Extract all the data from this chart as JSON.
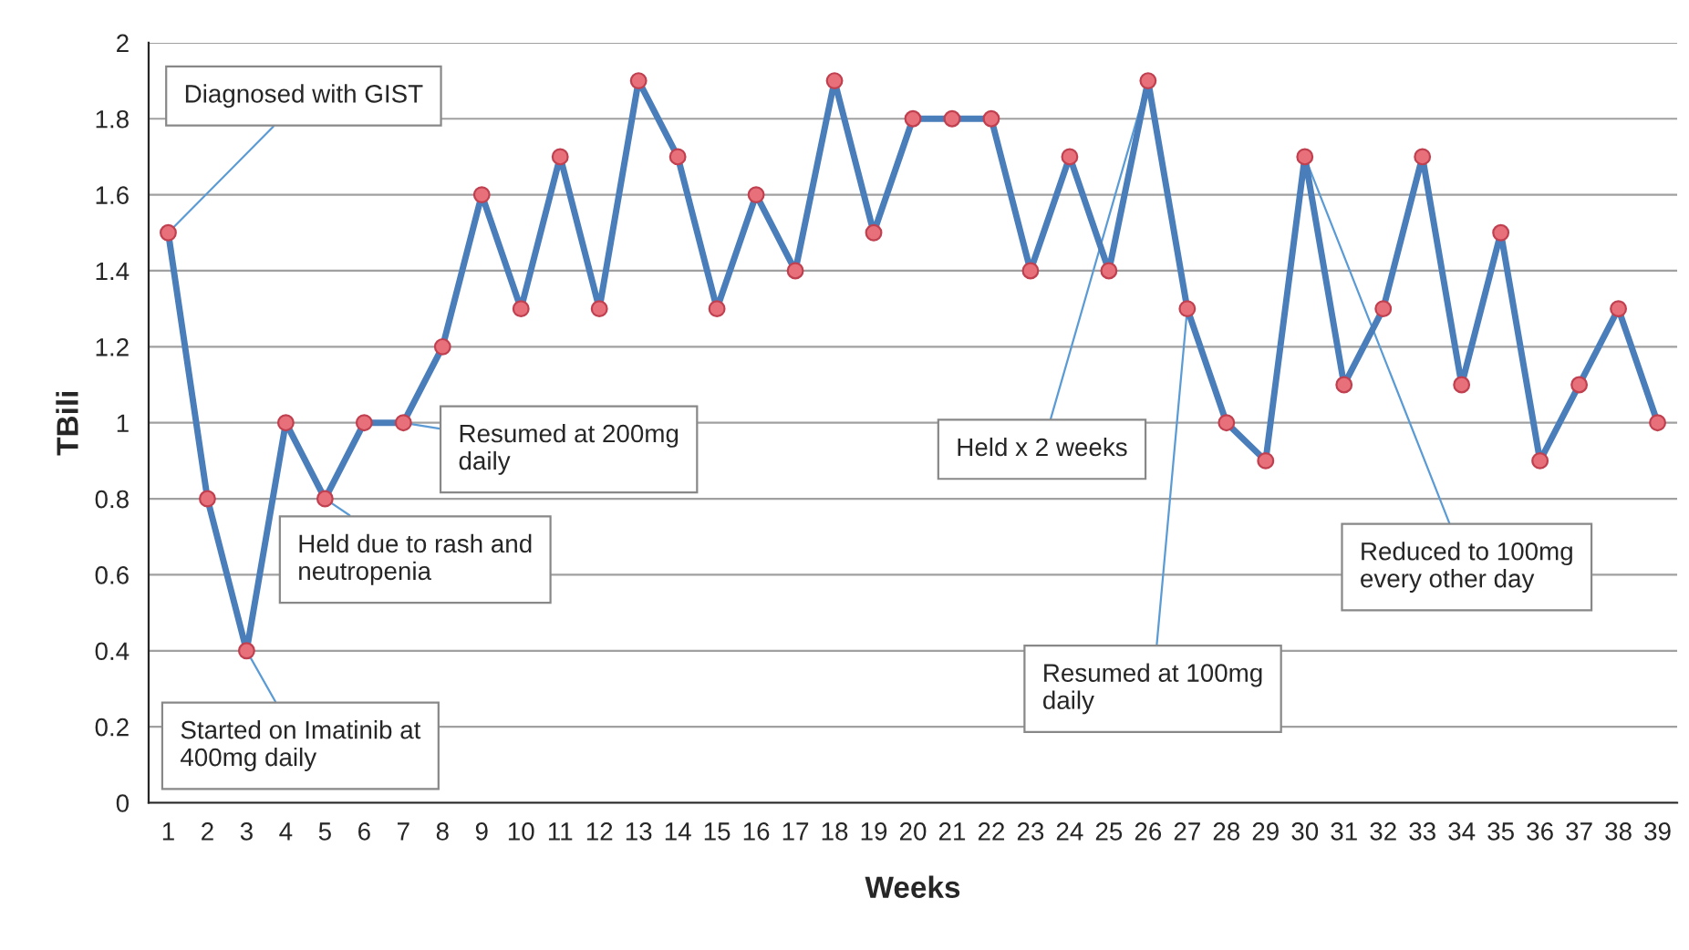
{
  "chart_data": {
    "type": "line",
    "xlabel": "Weeks",
    "ylabel": "TBili",
    "categories": [
      "1",
      "2",
      "3",
      "4",
      "5",
      "6",
      "7",
      "8",
      "9",
      "10",
      "11",
      "12",
      "13",
      "14",
      "15",
      "16",
      "17",
      "18",
      "19",
      "20",
      "21",
      "22",
      "23",
      "24",
      "25",
      "26",
      "27",
      "28",
      "29",
      "30",
      "31",
      "32",
      "33",
      "34",
      "35",
      "36",
      "37",
      "38",
      "39"
    ],
    "series": [
      {
        "color": "#4a7ebb",
        "values": [
          1.5,
          0.8,
          0.4,
          1.0,
          0.8,
          1.0,
          1.0,
          1.2,
          1.6,
          1.3,
          1.7,
          1.3,
          1.9,
          1.7,
          1.3,
          1.6,
          1.4,
          1.9,
          1.5,
          1.8,
          1.8,
          1.8,
          1.4,
          1.7,
          1.4,
          1.9,
          1.3,
          1.0,
          0.9,
          1.7,
          1.1,
          1.3,
          1.7,
          1.1,
          1.5,
          0.9,
          1.1,
          1.3,
          1.0
        ]
      }
    ],
    "ylim": [
      0,
      2
    ],
    "yticks": [
      0,
      0.2,
      0.4,
      0.6,
      0.8,
      1,
      1.2,
      1.4,
      1.6,
      1.8,
      2
    ],
    "grid": "y",
    "marker": "circle",
    "line_style": "solid",
    "legend": false,
    "annotations": [
      {
        "text": "Diagnosed with GIST",
        "x": "1",
        "y": 1.5
      },
      {
        "text": "Started on Imatinib at\n400mg daily",
        "x": "3",
        "y": 0.4
      },
      {
        "text": "Held due to rash and\nneutropenia",
        "x": "5",
        "y": 0.8
      },
      {
        "text": "Resumed at 200mg\ndaily",
        "x": "7",
        "y": 1.0
      },
      {
        "text": "Held x 2 weeks",
        "x": "26",
        "y": 1.9
      },
      {
        "text": "Resumed at 100mg\ndaily",
        "x": "27",
        "y": 1.3
      },
      {
        "text": "Reduced to 100mg\nevery other day",
        "x": "30",
        "y": 1.7
      }
    ]
  }
}
